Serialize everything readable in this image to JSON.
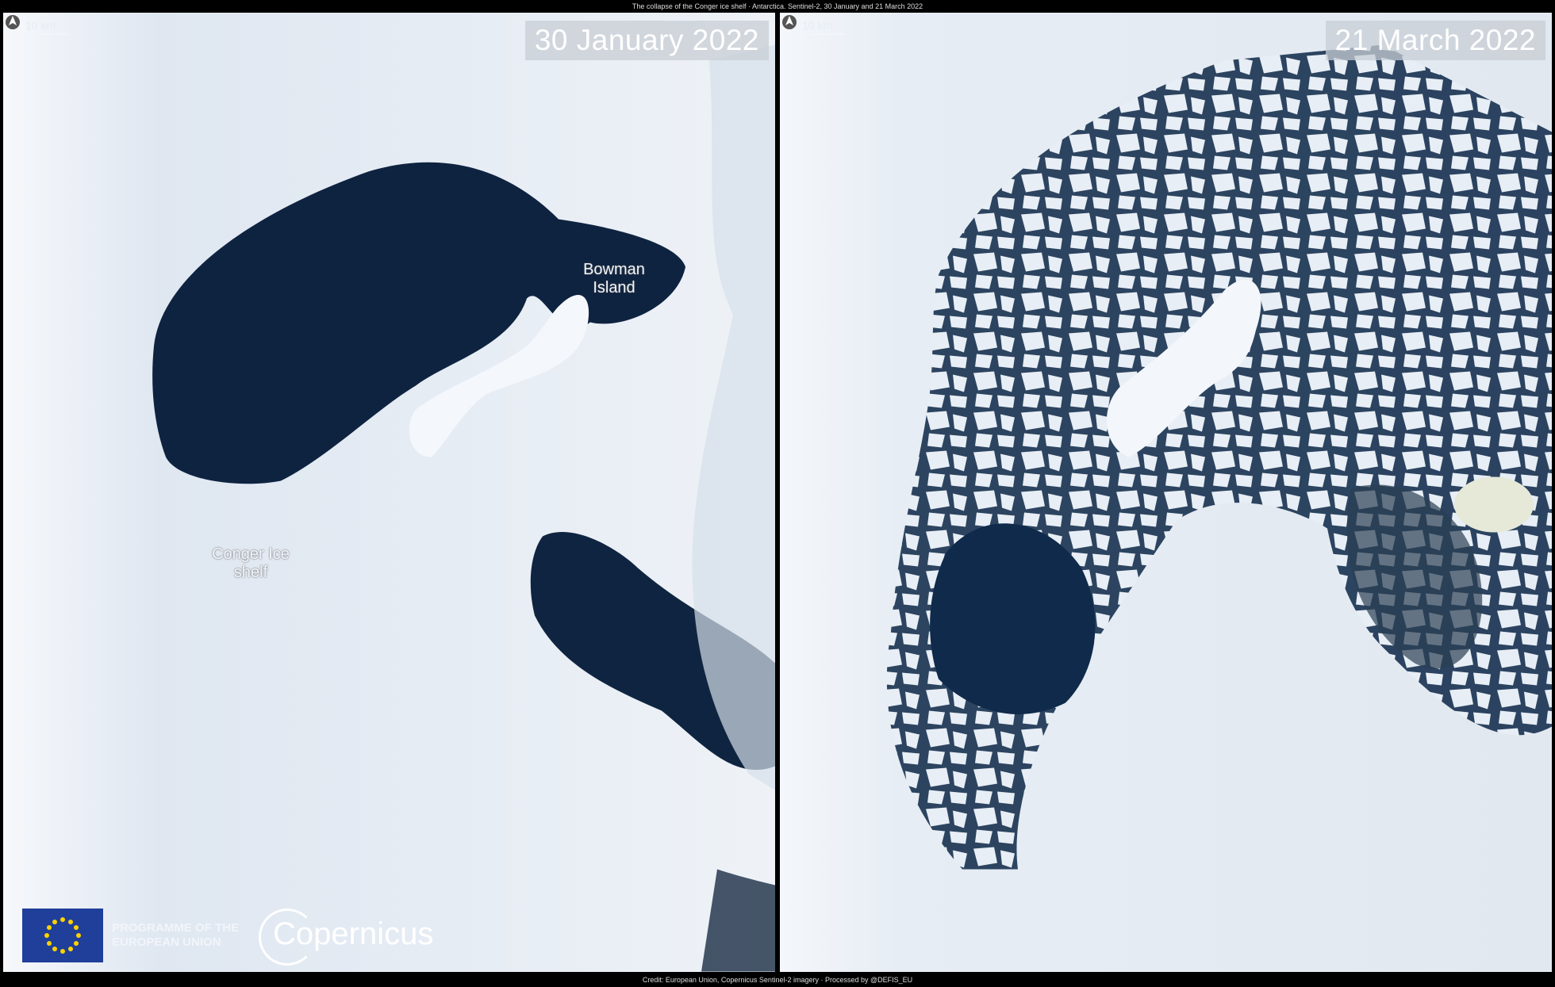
{
  "title": "The collapse of the Conger ice shelf · Antarctica. Sentinel-2, 30 January and 21 March 2022",
  "credit": "Credit: European Union, Copernicus Sentinel-2 imagery · Processed by @DEFIS_EU",
  "panels": [
    {
      "date": "30 January 2022",
      "scale_label": "10 km",
      "labels": {
        "island": "Bowman Island",
        "shelf": "Conger Ice shelf"
      }
    },
    {
      "date": "21 March 2022",
      "scale_label": "10 km"
    }
  ],
  "logos": {
    "eu_text_line1": "PROGRAMME OF THE",
    "eu_text_line2": "EUROPEAN UNION",
    "copernicus": "Copernicus"
  },
  "colors": {
    "ice": "#e9eef5",
    "water": "#0e2340",
    "flag": "#1f3f9a"
  }
}
